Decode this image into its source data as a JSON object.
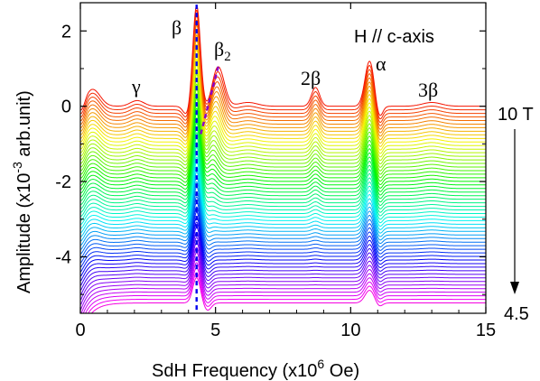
{
  "chart_data": {
    "type": "line",
    "title": "",
    "xlabel": "SdH Frequency (x10",
    "xlabel_sup": "6",
    "xlabel_end": " Oe)",
    "ylabel": "Amplitude (x10",
    "ylabel_sup": "-3",
    "ylabel_end": " arb.unit)",
    "xlim": [
      0,
      15
    ],
    "ylim": [
      -5.5,
      2.75
    ],
    "xticks": [
      0,
      5,
      10,
      15
    ],
    "yticks": [
      -4,
      -2,
      0,
      2
    ],
    "x_tick_labels": [
      "0",
      "5",
      "10",
      "15"
    ],
    "y_tick_labels": [
      "-4",
      "-2",
      "0",
      "2"
    ],
    "grid": false,
    "field_label": "H // c-axis",
    "field_start_label": "10 T",
    "field_end_label": "4.5",
    "series_count": 56,
    "series_offset_step": -0.095,
    "color_order": "red-to-magenta (spectrum) from 10 T (top) to 4.5 T (bottom)",
    "peak_annotations": [
      {
        "label": "β",
        "x": 4.35
      },
      {
        "label": "β",
        "sub": "2",
        "x": 5.1
      },
      {
        "label": "γ",
        "x": 2.1
      },
      {
        "label": "2β",
        "x": 8.7
      },
      {
        "label": "α",
        "x": 10.7
      },
      {
        "label": "3β",
        "x": 13.0
      }
    ],
    "top_trace_peaks": [
      {
        "x": 0.45,
        "y": 0.45
      },
      {
        "x": 2.1,
        "y": 0.15
      },
      {
        "x": 4.3,
        "y": 2.7
      },
      {
        "x": 5.1,
        "y": 1.05
      },
      {
        "x": 8.7,
        "y": 0.5
      },
      {
        "x": 10.7,
        "y": 1.2
      },
      {
        "x": 13.0,
        "y": 0.1
      }
    ]
  }
}
